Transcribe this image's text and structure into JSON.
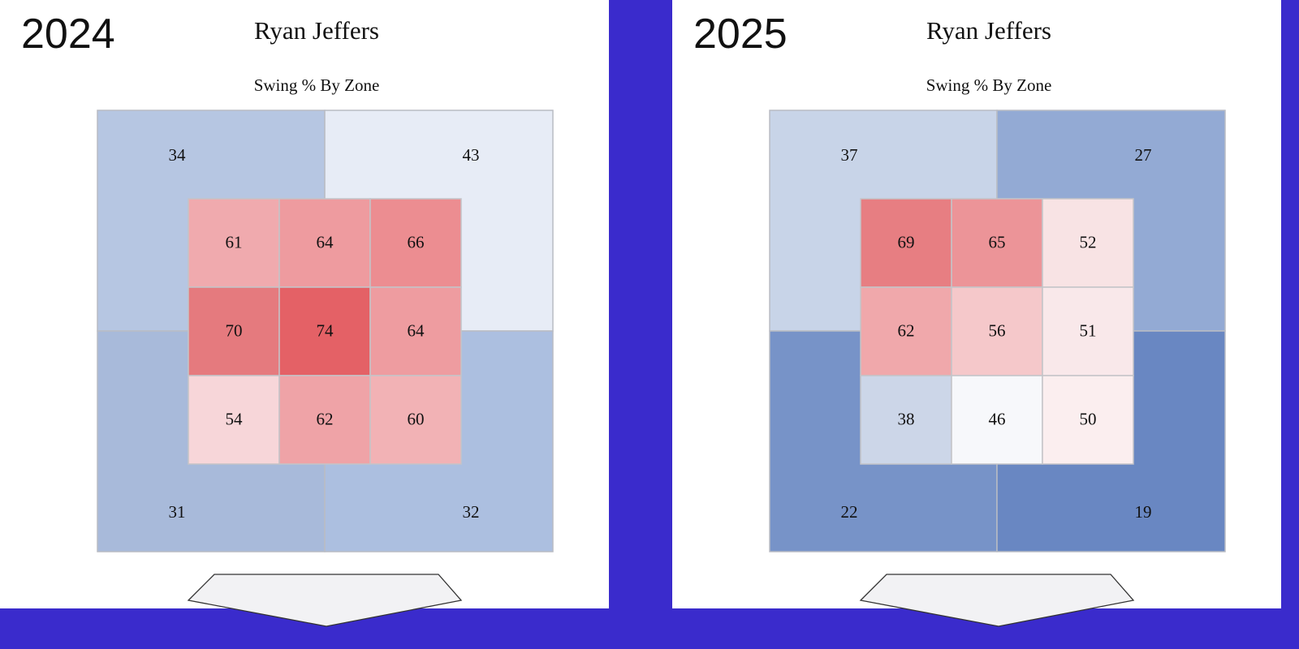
{
  "chart_data": [
    {
      "type": "heatmap",
      "year_label": "2024",
      "title": "Ryan Jeffers",
      "subtitle": "Swing % By Zone",
      "outer": {
        "top_left": 34,
        "top_right": 43,
        "bottom_left": 31,
        "bottom_right": 32
      },
      "outer_colors": {
        "top_left": "#b6c6e2",
        "top_right": "#e7ecf6",
        "bottom_left": "#a8bada",
        "bottom_right": "#acbfe0"
      },
      "inner": [
        [
          61,
          64,
          66
        ],
        [
          70,
          74,
          64
        ],
        [
          54,
          62,
          60
        ]
      ],
      "inner_colors": [
        [
          "#f0aaae",
          "#ee9b9f",
          "#ec8d91"
        ],
        [
          "#e57a7e",
          "#e46166",
          "#ee9ca0"
        ],
        [
          "#f7d6d9",
          "#efa3a7",
          "#f2b2b5"
        ]
      ]
    },
    {
      "type": "heatmap",
      "year_label": "2025",
      "title": "Ryan Jeffers",
      "subtitle": "Swing % By Zone",
      "outer": {
        "top_left": 37,
        "top_right": 27,
        "bottom_left": 22,
        "bottom_right": 19
      },
      "outer_colors": {
        "top_left": "#c8d4e8",
        "top_right": "#93aad4",
        "bottom_left": "#7793c8",
        "bottom_right": "#6987c2"
      },
      "inner": [
        [
          69,
          65,
          52
        ],
        [
          62,
          56,
          51
        ],
        [
          38,
          46,
          50
        ]
      ],
      "inner_colors": [
        [
          "#e77e82",
          "#ec9498",
          "#f8e3e4"
        ],
        [
          "#f0a8ab",
          "#f5c8ca",
          "#f9e8ea"
        ],
        [
          "#ccd6e8",
          "#f7f8fb",
          "#fbeeef"
        ]
      ]
    }
  ]
}
